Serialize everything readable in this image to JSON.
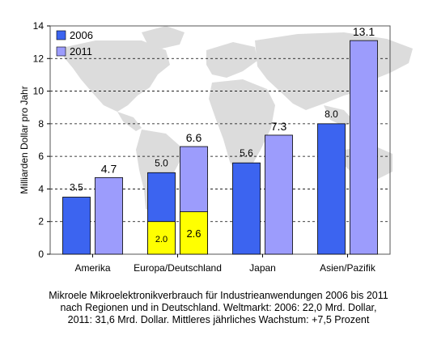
{
  "colors": {
    "series_2006": "#3c64f0",
    "series_2011": "#9c9cfc",
    "germany": "#ffff00",
    "map": "#dcdcdc",
    "grid": "#000000"
  },
  "chart_data": {
    "type": "bar",
    "ylabel": "Milliarden Dollar pro Jahr",
    "ylim": [
      0,
      14
    ],
    "yticks": [
      "0",
      "2",
      "4",
      "6",
      "8",
      "10",
      "12",
      "14"
    ],
    "grid": true,
    "legend_position": "top-left",
    "categories": [
      "Amerika",
      "Europa/Deutschland",
      "Japan",
      "Asien/Pazifik"
    ],
    "series": [
      {
        "name": "2006",
        "values": [
          3.5,
          5.0,
          5.6,
          8.0
        ],
        "labels": [
          "3.5",
          "5.0",
          "5.6",
          "8.0"
        ]
      },
      {
        "name": "2011",
        "values": [
          4.7,
          6.6,
          7.3,
          13.1
        ],
        "labels": [
          "4.7",
          "6.6",
          "7.3",
          "13.1"
        ]
      }
    ],
    "germany_segments": [
      {
        "series": "2006",
        "value": 2.0,
        "label": "2.0"
      },
      {
        "series": "2011",
        "value": 2.6,
        "label": "2.6"
      }
    ],
    "background": "world-map"
  },
  "caption": [
    "Mikroele Mikroelektronikverbrauch für Industrieanwendungen 2006 bis 2011",
    "nach Regionen und in Deutschland. Weltmarkt: 2006: 22,0 Mrd. Dollar,",
    "2011: 31,6 Mrd. Dollar. Mittleres jährliches Wachstum: +7,5 Prozent"
  ]
}
